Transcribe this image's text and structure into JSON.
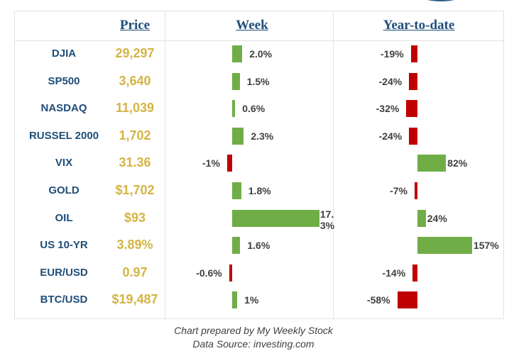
{
  "headers": {
    "price": "Price",
    "week": "Week",
    "ytd": "Year-to-date"
  },
  "colors": {
    "positive": "#70ad47",
    "negative": "#c00000",
    "label": "#1f4e79",
    "price": "#d4b443"
  },
  "chart_data": {
    "type": "table",
    "columns": [
      "Price",
      "Week",
      "Year-to-date"
    ],
    "rows": [
      {
        "label": "DJIA",
        "price": "29,297",
        "week": 2.0,
        "week_label": "2.0%",
        "ytd": -19,
        "ytd_label": "-19%"
      },
      {
        "label": "SP500",
        "price": "3,640",
        "week": 1.5,
        "week_label": "1.5%",
        "ytd": -24,
        "ytd_label": "-24%"
      },
      {
        "label": "NASDAQ",
        "price": "11,039",
        "week": 0.6,
        "week_label": "0.6%",
        "ytd": -32,
        "ytd_label": "-32%"
      },
      {
        "label": "RUSSEL 2000",
        "price": "1,702",
        "week": 2.3,
        "week_label": "2.3%",
        "ytd": -24,
        "ytd_label": "-24%"
      },
      {
        "label": "VIX",
        "price": "31.36",
        "week": -1,
        "week_label": "-1%",
        "ytd": 82,
        "ytd_label": "82%"
      },
      {
        "label": "GOLD",
        "price": "$1,702",
        "week": 1.8,
        "week_label": "1.8%",
        "ytd": -7,
        "ytd_label": "-7%"
      },
      {
        "label": "OIL",
        "price": "$93",
        "week": 17.3,
        "week_label": "17.3%",
        "ytd": 24,
        "ytd_label": "24%"
      },
      {
        "label": "US 10-YR",
        "price": "3.89%",
        "week": 1.6,
        "week_label": "1.6%",
        "ytd": 157,
        "ytd_label": "157%"
      },
      {
        "label": "EUR/USD",
        "price": "0.97",
        "week": -0.6,
        "week_label": "-0.6%",
        "ytd": -14,
        "ytd_label": "-14%"
      },
      {
        "label": "BTC/USD",
        "price": "$19,487",
        "week": 1,
        "week_label": "1%",
        "ytd": -58,
        "ytd_label": "-58%"
      }
    ]
  },
  "footer": {
    "line1": "Chart prepared by My Weekly Stock",
    "line2": "Data Source: investing.com"
  }
}
